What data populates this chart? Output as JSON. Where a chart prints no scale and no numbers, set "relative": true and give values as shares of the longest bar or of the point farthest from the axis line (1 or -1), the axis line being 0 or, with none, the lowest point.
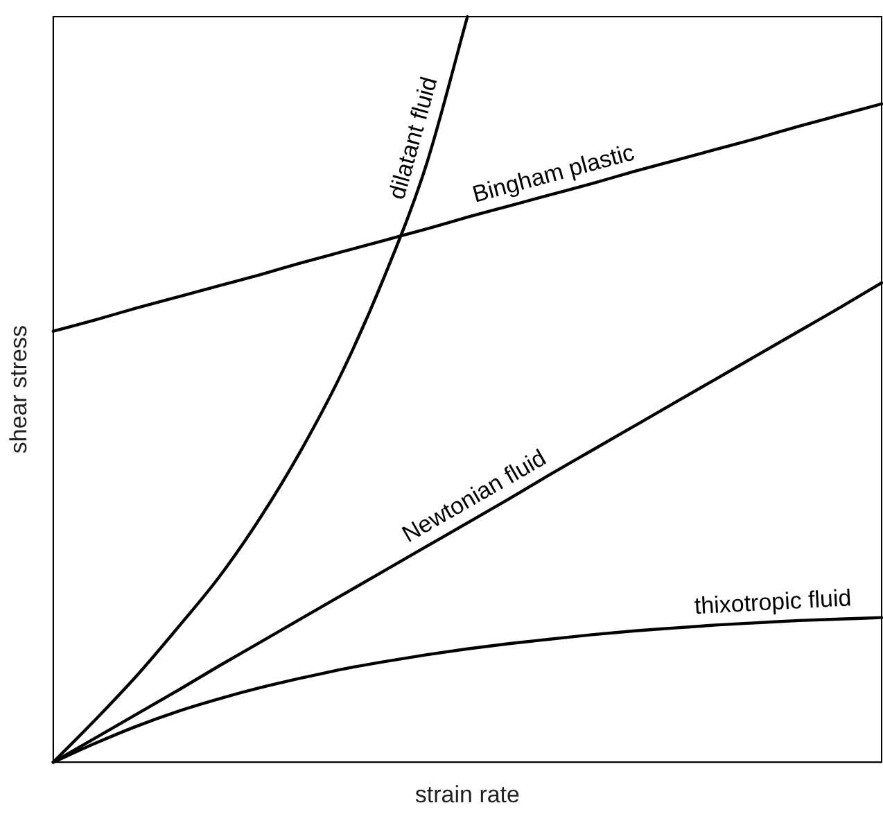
{
  "chart_data": {
    "type": "line",
    "relative": true,
    "xlabel": "strain rate",
    "ylabel": "shear stress",
    "legend": false,
    "grid": false,
    "marker": "none",
    "line_style": "solid",
    "categories": [
      null,
      null,
      null,
      null,
      null,
      null,
      null,
      null,
      null,
      null,
      null,
      null,
      null,
      null,
      null,
      null,
      null,
      null,
      null,
      null,
      null
    ],
    "series": [
      {
        "name": "dilatant fluid",
        "color": "#000000",
        "values": [
          0,
          0.056,
          0.115,
          0.18,
          0.248,
          0.328,
          0.42,
          0.526,
          0.652,
          0.8,
          1,
          null,
          null,
          null,
          null,
          null,
          null,
          null,
          null,
          null,
          null
        ]
      },
      {
        "name": "Bingham plastic",
        "color": "#000000",
        "values": [
          0.578,
          0.593,
          0.609,
          0.624,
          0.639,
          0.654,
          0.67,
          0.685,
          0.7,
          0.715,
          0.731,
          0.746,
          0.761,
          0.776,
          0.792,
          0.807,
          0.822,
          0.837,
          0.853,
          0.868,
          0.883
        ]
      },
      {
        "name": "Newtonian fluid",
        "color": "#000000",
        "values": [
          0,
          0.032,
          0.064,
          0.096,
          0.129,
          0.161,
          0.193,
          0.225,
          0.257,
          0.289,
          0.321,
          0.353,
          0.386,
          0.418,
          0.45,
          0.482,
          0.514,
          0.546,
          0.578,
          0.61,
          0.643
        ]
      },
      {
        "name": "thixotropic fluid",
        "color": "#000000",
        "values": [
          0,
          0.025,
          0.048,
          0.068,
          0.085,
          0.1,
          0.113,
          0.125,
          0.135,
          0.144,
          0.152,
          0.159,
          0.165,
          0.171,
          0.176,
          0.18,
          0.184,
          0.187,
          0.19,
          0.192,
          0.194
        ]
      }
    ]
  }
}
